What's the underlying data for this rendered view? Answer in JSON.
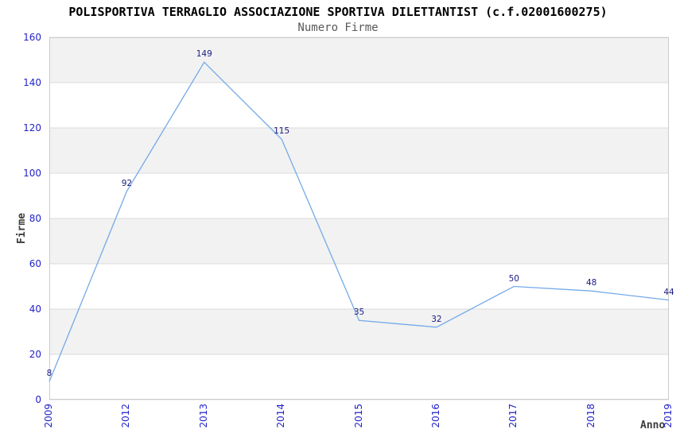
{
  "chart_data": {
    "type": "line",
    "title": "POLISPORTIVA TERRAGLIO ASSOCIAZIONE SPORTIVA DILETTANTIST (c.f.02001600275)",
    "subtitle": "Numero Firme",
    "xlabel": "Anno",
    "ylabel": "Firme",
    "categories": [
      "2009",
      "2012",
      "2013",
      "2014",
      "2015",
      "2016",
      "2017",
      "2018",
      "2019"
    ],
    "values": [
      8,
      92,
      149,
      115,
      35,
      32,
      50,
      48,
      44
    ],
    "point_labels": [
      "8",
      "92",
      "149",
      "115",
      "35",
      "32",
      "50",
      "48",
      "44"
    ],
    "ylim": [
      0,
      160
    ],
    "yticks": [
      0,
      20,
      40,
      60,
      80,
      100,
      120,
      140,
      160
    ],
    "grid": "horizontal",
    "legend": "none",
    "colors": {
      "line": "#74AAE8",
      "point_label": "#1A1A80",
      "tick_label": "#2222CC",
      "band_gray": "#F2F2F2",
      "band_white": "#FFFFFF",
      "gridline": "#DBDBDB",
      "plot_border": "#CCCCCC",
      "title": "#000000",
      "subtitle": "#595959",
      "axis_title": "#3D3D3D"
    }
  }
}
